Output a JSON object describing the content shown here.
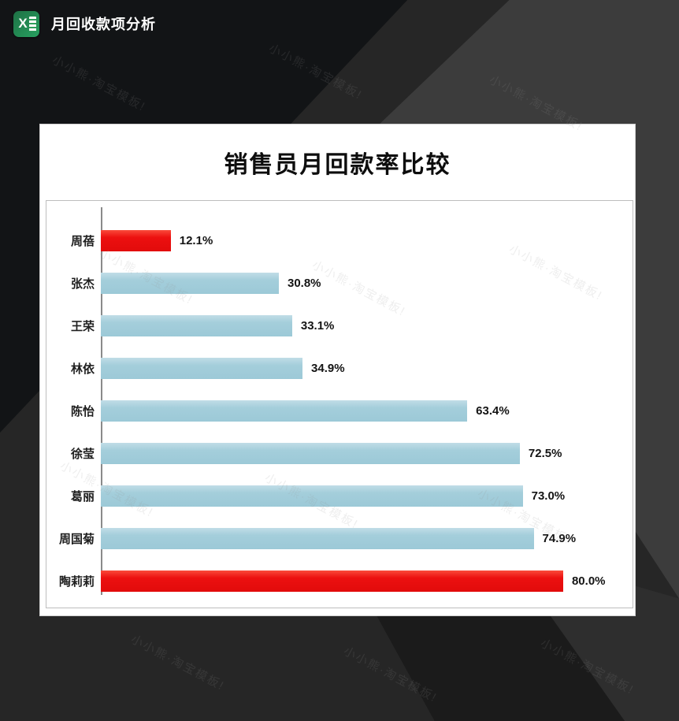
{
  "header": {
    "app_title": "月回收款项分析",
    "icon": "excel-icon",
    "icon_letter": "X",
    "icon_color": "#27a060"
  },
  "watermark": {
    "text": "小小熊·淘宝模板!"
  },
  "chart_data": {
    "type": "bar",
    "orientation": "horizontal",
    "title": "销售员月回款率比较",
    "categories": [
      "周蓓",
      "张杰",
      "王荣",
      "林依",
      "陈怡",
      "徐莹",
      "葛丽",
      "周国菊",
      "陶莉莉"
    ],
    "values": [
      12.1,
      30.8,
      33.1,
      34.9,
      63.4,
      72.5,
      73.0,
      74.9,
      80.0
    ],
    "value_labels": [
      "12.1%",
      "30.8%",
      "33.1%",
      "34.9%",
      "63.4%",
      "72.5%",
      "73.0%",
      "74.9%",
      "80.0%"
    ],
    "point_styles": [
      "highlight",
      "normal",
      "normal",
      "normal",
      "normal",
      "normal",
      "normal",
      "normal",
      "highlight"
    ],
    "colors": {
      "highlight": "#EC1010",
      "normal": "#A4CEDB"
    },
    "xlabel": "",
    "ylabel": "",
    "xlim": [
      0,
      92
    ],
    "gridlines": false,
    "legend": false,
    "data_labels": true
  }
}
